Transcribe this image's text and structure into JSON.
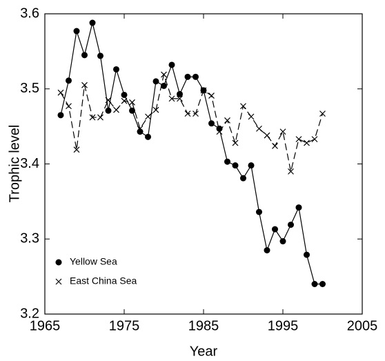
{
  "chart_data": {
    "type": "line",
    "x_label": "Year",
    "y_label": "Trophic level",
    "x": [
      1967,
      1968,
      1969,
      1970,
      1971,
      1972,
      1973,
      1974,
      1975,
      1976,
      1977,
      1978,
      1979,
      1980,
      1981,
      1982,
      1983,
      1984,
      1985,
      1986,
      1987,
      1988,
      1989,
      1990,
      1991,
      1992,
      1993,
      1994,
      1995,
      1996,
      1997,
      1998,
      1999,
      2000
    ],
    "series": [
      {
        "name": "Yellow Sea",
        "color": "#000000",
        "marker": "circle",
        "dashed": false,
        "values": [
          3.465,
          3.511,
          3.577,
          3.545,
          3.588,
          3.544,
          3.471,
          3.526,
          3.492,
          3.471,
          3.443,
          3.436,
          3.51,
          3.504,
          3.532,
          3.493,
          3.516,
          3.516,
          3.498,
          3.454,
          3.447,
          3.403,
          3.398,
          3.381,
          3.398,
          3.336,
          3.285,
          3.313,
          3.297,
          3.319,
          3.342,
          3.279,
          3.24,
          3.24
        ]
      },
      {
        "name": "East China Sea",
        "color": "#000000",
        "marker": "x",
        "dashed": true,
        "values": [
          3.495,
          3.477,
          3.419,
          3.505,
          3.462,
          3.462,
          3.485,
          3.472,
          3.484,
          3.482,
          3.447,
          3.463,
          3.472,
          3.519,
          3.487,
          3.487,
          3.467,
          3.467,
          3.498,
          3.491,
          3.443,
          3.458,
          3.428,
          3.477,
          3.463,
          3.447,
          3.438,
          3.424,
          3.443,
          3.39,
          3.433,
          3.428,
          3.433,
          3.467
        ]
      }
    ],
    "xlim": [
      1965,
      2005
    ],
    "xticks": [
      1965,
      1975,
      1985,
      1995,
      2005
    ],
    "ylim": [
      3.2,
      3.6
    ],
    "yticks": [
      3.2,
      3.3,
      3.4,
      3.5,
      3.6
    ],
    "legend": "lower left",
    "grid": false
  }
}
